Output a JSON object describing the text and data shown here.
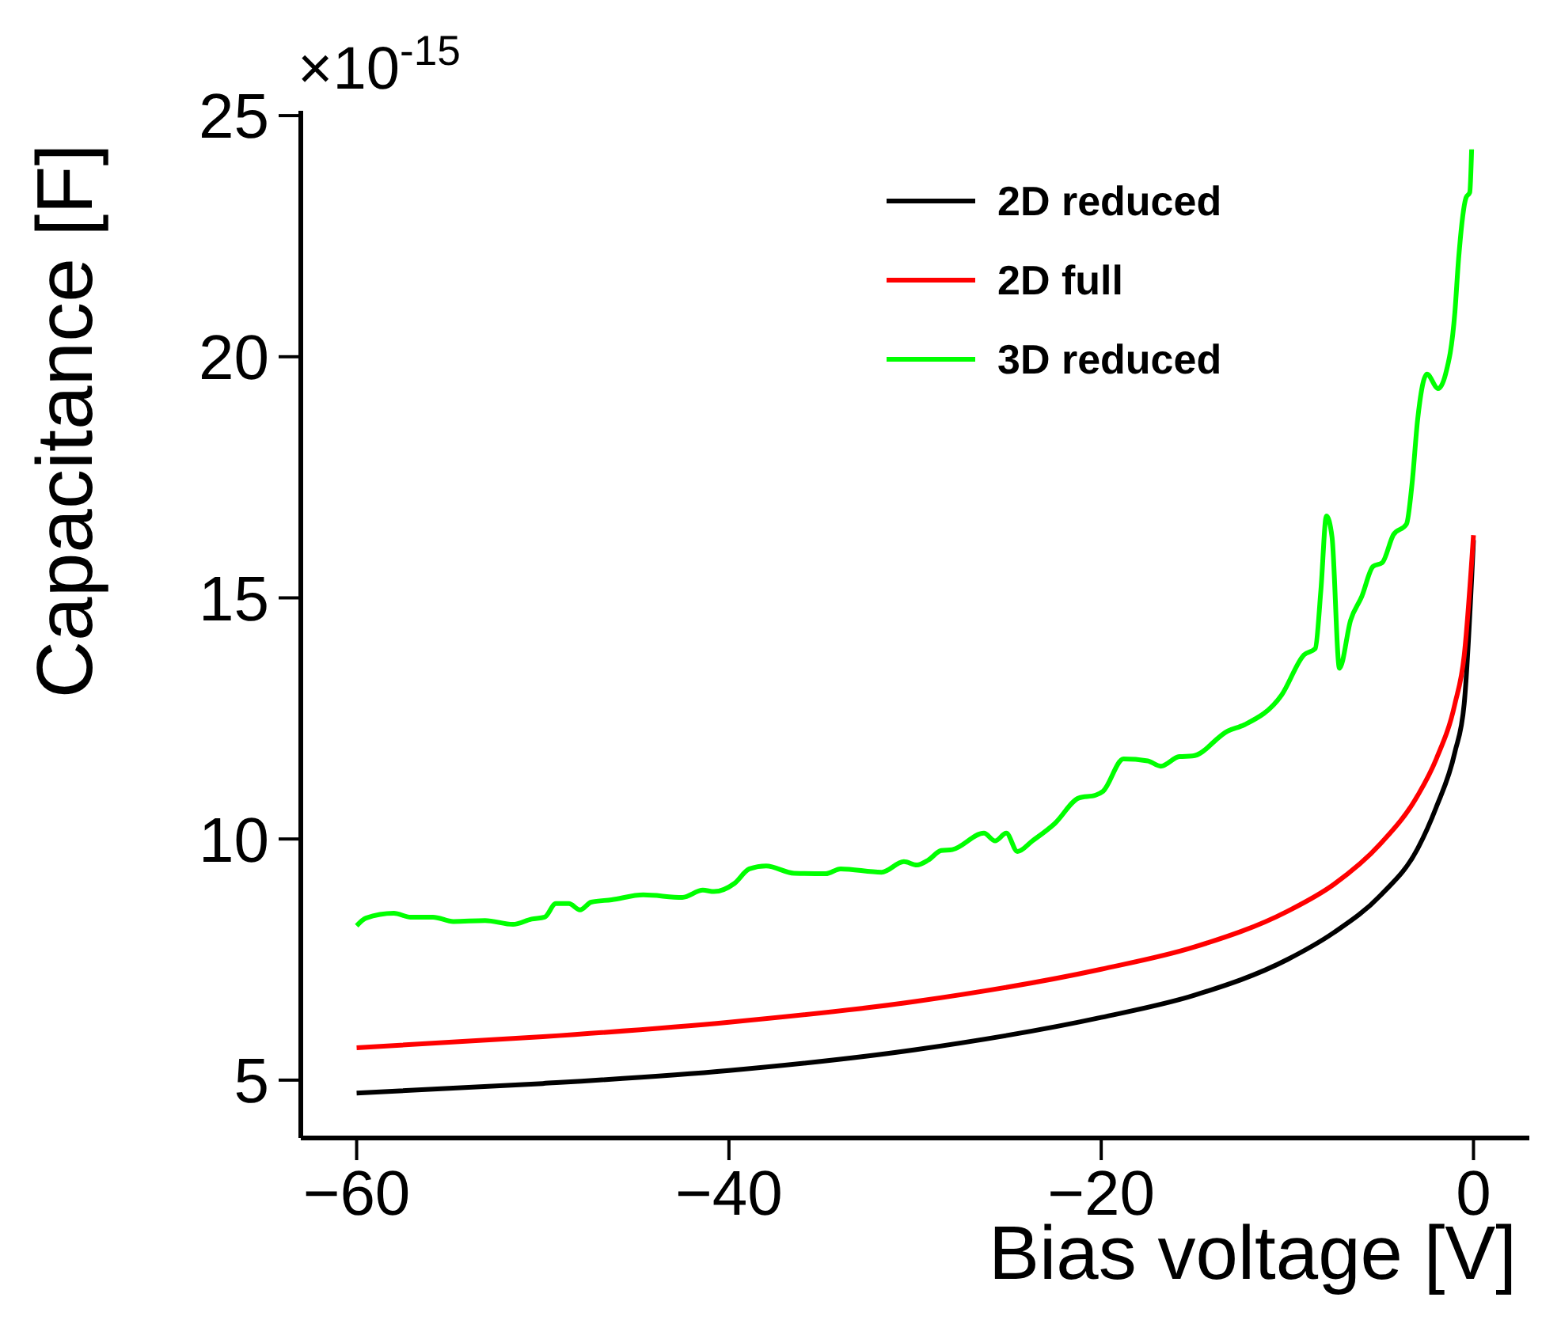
{
  "chart_data": {
    "type": "line",
    "xlabel": "Bias voltage [V]",
    "ylabel": "Capacitance [F]",
    "annotations": [
      "×10$^{-15}$"
    ],
    "xlim": [
      -63,
      3
    ],
    "ylim": [
      3.8,
      25.1
    ],
    "xticks": [
      -60,
      -40,
      -20,
      0
    ],
    "yticks": [
      5,
      10,
      15,
      20,
      25
    ],
    "grid": false,
    "legend": "top right",
    "marker": "none",
    "line_style": "solid",
    "series": [
      {
        "name": "2D reduced",
        "color": "#000000",
        "x": [
          -60,
          -50,
          -40,
          -30,
          -20,
          -15,
          -10,
          -7.5,
          -5,
          -3,
          -2,
          -1,
          -0.5,
          0
        ],
        "values": [
          4.73,
          4.93,
          5.2,
          5.63,
          6.3,
          6.76,
          7.5,
          8.06,
          8.83,
          9.8,
          10.66,
          11.8,
          12.8,
          16.2
        ]
      },
      {
        "name": "2D full",
        "color": "#ff0000",
        "x": [
          -60,
          -50,
          -40,
          -30,
          -20,
          -15,
          -10,
          -7.5,
          -5,
          -3,
          -2,
          -1,
          -0.5,
          0
        ],
        "values": [
          5.67,
          5.9,
          6.2,
          6.63,
          7.3,
          7.76,
          8.5,
          9.06,
          9.9,
          10.9,
          11.66,
          12.8,
          13.8,
          16.3
        ]
      },
      {
        "name": "3D reduced",
        "color": "#00ff00",
        "x": [
          -60,
          -59.5,
          -58,
          -57.1,
          -55.9,
          -54.8,
          -53.1,
          -51.6,
          -50.6,
          -49.9,
          -49.3,
          -48.6,
          -48,
          -47.4,
          -46.3,
          -44.6,
          -42.5,
          -41.4,
          -40.8,
          -39.7,
          -38.9,
          -38,
          -36.5,
          -34.8,
          -34,
          -31.8,
          -30.6,
          -29.9,
          -29.3,
          -28.6,
          -28,
          -26.3,
          -25.7,
          -25.1,
          -24.5,
          -23.7,
          -22.5,
          -21.2,
          -20.3,
          -19.9,
          -18.8,
          -17.5,
          -16.8,
          -15.8,
          -15.1,
          -13.2,
          -12.3,
          -10.3,
          -9.1,
          -8.5,
          -8.2,
          -7.9,
          -7.6,
          -7.2,
          -6.6,
          -6,
          -5.4,
          -4.9,
          -4.3,
          -3.6,
          -3.3,
          -3,
          -2.5,
          -1.9,
          -1.5,
          -1,
          -0.8,
          -0.4,
          -0.2,
          -0.1
        ],
        "values": [
          8.2,
          8.36,
          8.46,
          8.38,
          8.38,
          8.29,
          8.31,
          8.23,
          8.34,
          8.38,
          8.66,
          8.66,
          8.53,
          8.69,
          8.74,
          8.84,
          8.79,
          8.94,
          8.91,
          9.08,
          9.38,
          9.44,
          9.29,
          9.28,
          9.38,
          9.31,
          9.53,
          9.46,
          9.56,
          9.76,
          9.78,
          10.12,
          9.96,
          10.12,
          9.74,
          9.96,
          10.32,
          10.85,
          10.91,
          10.99,
          11.66,
          11.62,
          11.51,
          11.71,
          11.72,
          12.24,
          12.37,
          12.99,
          13.82,
          13.95,
          15.15,
          16.7,
          16.26,
          13.54,
          14.54,
          15.03,
          15.65,
          15.73,
          16.31,
          16.53,
          17.37,
          18.7,
          19.64,
          19.34,
          19.64,
          20.92,
          22.03,
          23.3,
          23.41,
          24.3
        ]
      }
    ]
  }
}
